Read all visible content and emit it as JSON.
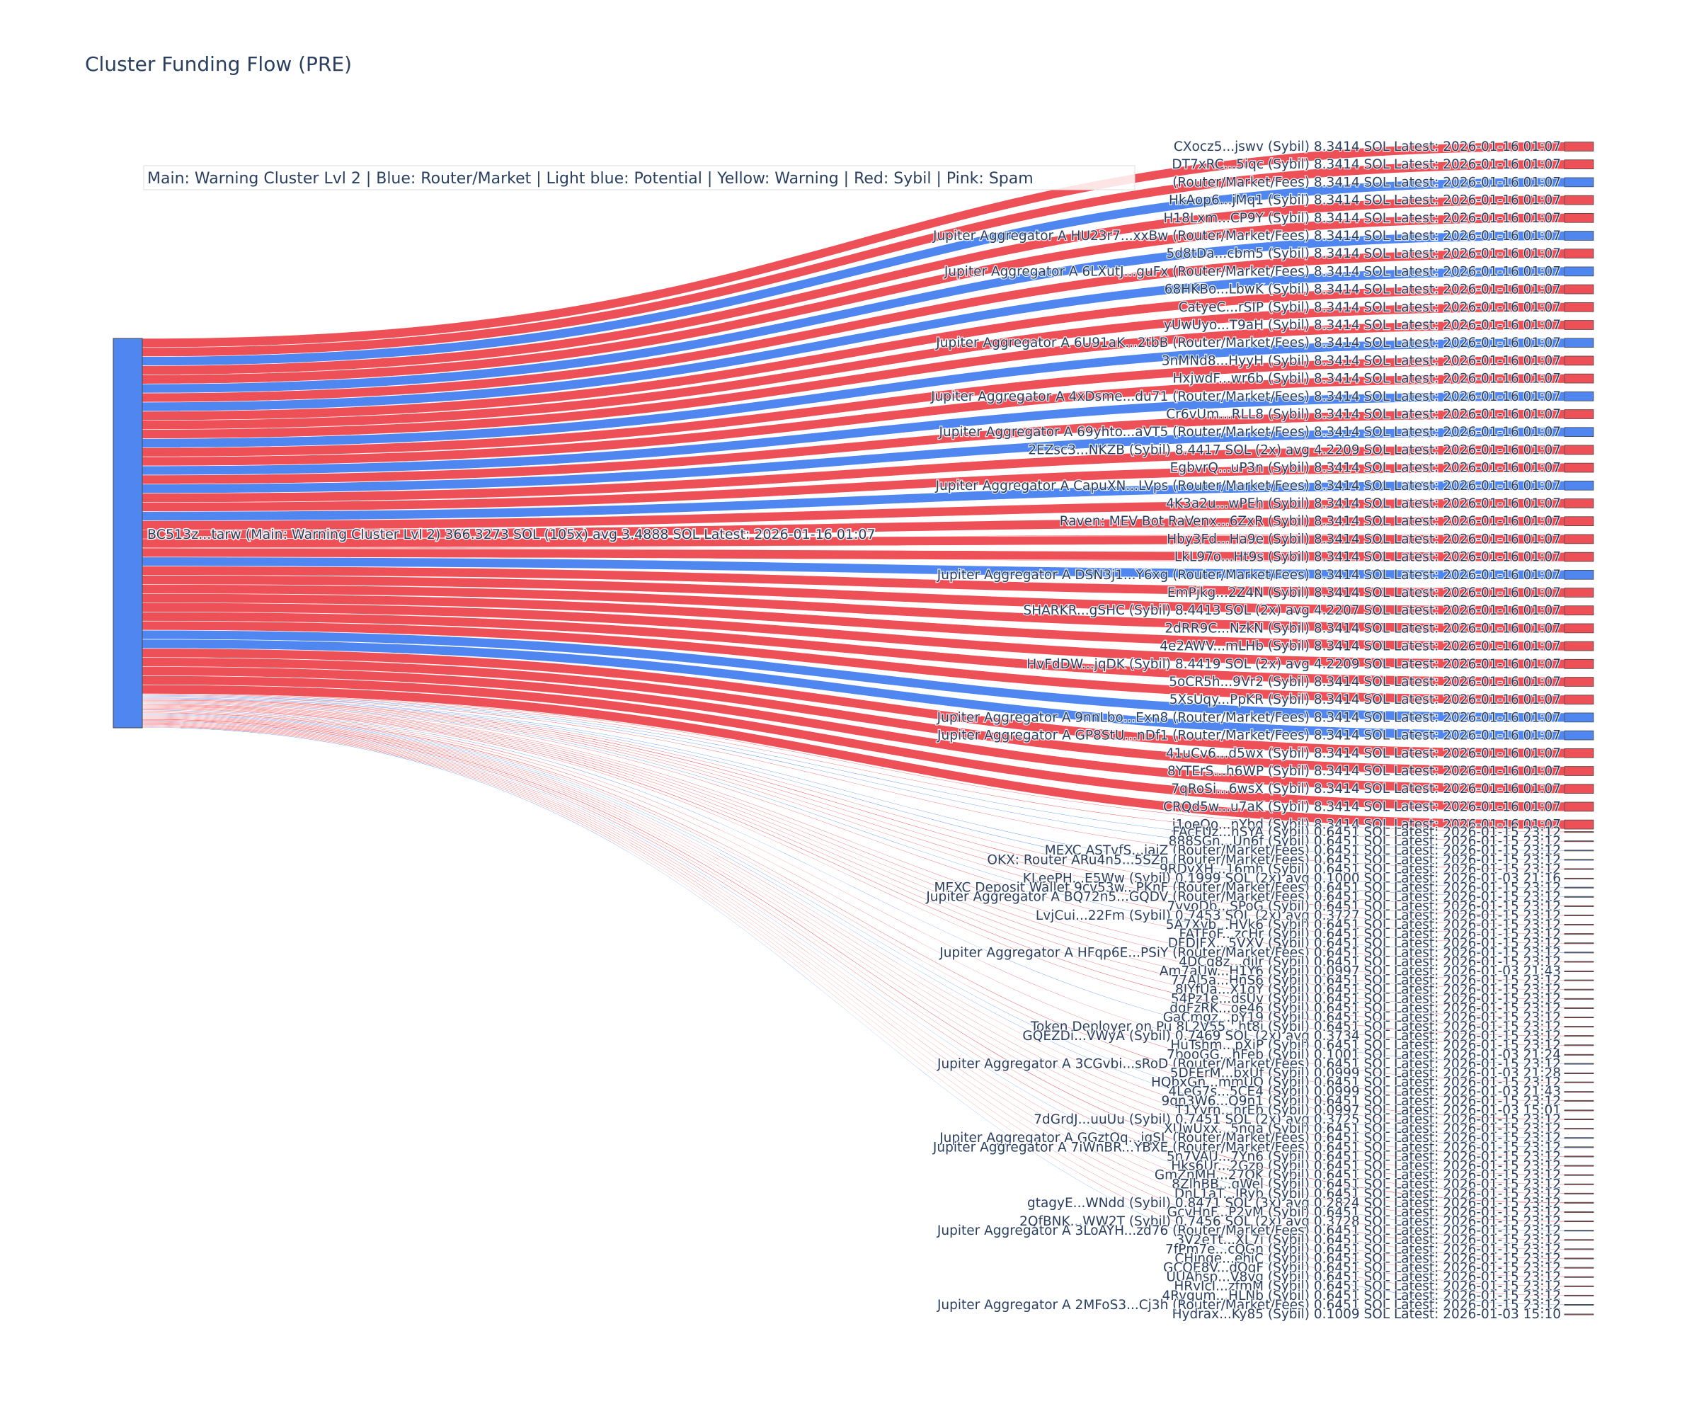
{
  "chart_data": {
    "type": "sankey",
    "title": "Cluster Funding Flow (PRE)",
    "legend_text": "Main: Warning Cluster Lvl 2  |  Blue: Router/Market | Light blue: Potential | Yellow: Warning | Red: Sybil | Pink: Spam",
    "legend_placement": "top-left",
    "colors": {
      "node_main": "#4f86f0",
      "router": "#4f86f0",
      "sybil": "#ee5058",
      "sybil_link": "#ee5058",
      "router_link": "#4f86f0"
    },
    "source": {
      "label": "BC513z...tarw (Main: Warning Cluster Lvl 2) 366.3273 SOL (105x) avg 3.4888 SOL Latest: 2026-01-16 01:07",
      "value": 366.3273
    },
    "targets": [
      {
        "label": "CXocz5...jswv (Sybil) 8.3414 SOL Latest: 2026-01-16 01:07",
        "value": 8.3414,
        "kind": "sybil"
      },
      {
        "label": "DT7xRC...5iqc (Sybil) 8.3414 SOL Latest: 2026-01-16 01:07",
        "value": 8.3414,
        "kind": "sybil"
      },
      {
        "label": "(Router/Market/Fees) 8.3414 SOL Latest: 2026-01-16 01:07",
        "value": 8.3414,
        "kind": "router"
      },
      {
        "label": "HkAop6...jMq1 (Sybil) 8.3414 SOL Latest: 2026-01-16 01:07",
        "value": 8.3414,
        "kind": "sybil"
      },
      {
        "label": "H18Lxm...CP9Y (Sybil) 8.3414 SOL Latest: 2026-01-16 01:07",
        "value": 8.3414,
        "kind": "sybil"
      },
      {
        "label": "Jupiter Aggregator A HU23r7...xxBw (Router/Market/Fees) 8.3414 SOL Latest: 2026-01-16 01:07",
        "value": 8.3414,
        "kind": "router"
      },
      {
        "label": "5d8tDa...cbm5 (Sybil) 8.3414 SOL Latest: 2026-01-16 01:07",
        "value": 8.3414,
        "kind": "sybil"
      },
      {
        "label": "Jupiter Aggregator A 6LXutJ...guFx (Router/Market/Fees) 8.3414 SOL Latest: 2026-01-16 01:07",
        "value": 8.3414,
        "kind": "router"
      },
      {
        "label": "68HKBo...LbwK (Sybil) 8.3414 SOL Latest: 2026-01-16 01:07",
        "value": 8.3414,
        "kind": "sybil"
      },
      {
        "label": "CatyeC...rSIP (Sybil) 8.3414 SOL Latest: 2026-01-16 01:07",
        "value": 8.3414,
        "kind": "sybil"
      },
      {
        "label": "yUwUyo...T9aH (Sybil) 8.3414 SOL Latest: 2026-01-16 01:07",
        "value": 8.3414,
        "kind": "sybil"
      },
      {
        "label": "Jupiter Aggregator A 6U91aK...2tbB (Router/Market/Fees) 8.3414 SOL Latest: 2026-01-16 01:07",
        "value": 8.3414,
        "kind": "router"
      },
      {
        "label": "3nMNd8...HyyH (Sybil) 8.3414 SOL Latest: 2026-01-16 01:07",
        "value": 8.3414,
        "kind": "sybil"
      },
      {
        "label": "HxjwdF...wr6b (Sybil) 8.3414 SOL Latest: 2026-01-16 01:07",
        "value": 8.3414,
        "kind": "sybil"
      },
      {
        "label": "Jupiter Aggregator A 4xDsme...du71 (Router/Market/Fees) 8.3414 SOL Latest: 2026-01-16 01:07",
        "value": 8.3414,
        "kind": "router"
      },
      {
        "label": "Cr6vUm...RLL8 (Sybil) 8.3414 SOL Latest: 2026-01-16 01:07",
        "value": 8.3414,
        "kind": "sybil"
      },
      {
        "label": "Jupiter Aggregator A 69yhto...aVT5 (Router/Market/Fees) 8.3414 SOL Latest: 2026-01-16 01:07",
        "value": 8.3414,
        "kind": "router"
      },
      {
        "label": "2EZsc3...NKZB (Sybil) 8.4417 SOL (2x) avg 4.2209 SOL Latest: 2026-01-16 01:07",
        "value": 8.4417,
        "kind": "sybil"
      },
      {
        "label": "EgbvrQ...uP3n (Sybil) 8.3414 SOL Latest: 2026-01-16 01:07",
        "value": 8.3414,
        "kind": "sybil"
      },
      {
        "label": "Jupiter Aggregator A CapuXN...LVps (Router/Market/Fees) 8.3414 SOL Latest: 2026-01-16 01:07",
        "value": 8.3414,
        "kind": "router"
      },
      {
        "label": "4K3a2u...wPEh (Sybil) 8.3414 SOL Latest: 2026-01-16 01:07",
        "value": 8.3414,
        "kind": "sybil"
      },
      {
        "label": "Raven: MEV Bot RaVenx...6ZxR (Sybil) 8.3414 SOL Latest: 2026-01-16 01:07",
        "value": 8.3414,
        "kind": "sybil"
      },
      {
        "label": "Hby3Fd...Ha9e (Sybil) 8.3414 SOL Latest: 2026-01-16 01:07",
        "value": 8.3414,
        "kind": "sybil"
      },
      {
        "label": "LkL97o...Ht9s (Sybil) 8.3414 SOL Latest: 2026-01-16 01:07",
        "value": 8.3414,
        "kind": "sybil"
      },
      {
        "label": "Jupiter Aggregator A DSN3j1...Y6xg (Router/Market/Fees) 8.3414 SOL Latest: 2026-01-16 01:07",
        "value": 8.3414,
        "kind": "router"
      },
      {
        "label": "EmPjkg...2Z4N (Sybil) 8.3414 SOL Latest: 2026-01-16 01:07",
        "value": 8.3414,
        "kind": "sybil"
      },
      {
        "label": "SHARKR...gSHC (Sybil) 8.4413 SOL (2x) avg 4.2207 SOL Latest: 2026-01-16 01:07",
        "value": 8.4413,
        "kind": "sybil"
      },
      {
        "label": "2dRR9C...NzkN (Sybil) 8.3414 SOL Latest: 2026-01-16 01:07",
        "value": 8.3414,
        "kind": "sybil"
      },
      {
        "label": "4e2AWV...mLHb (Sybil) 8.3414 SOL Latest: 2026-01-16 01:07",
        "value": 8.3414,
        "kind": "sybil"
      },
      {
        "label": "HvFdDW...jqDK (Sybil) 8.4419 SOL (2x) avg 4.2209 SOL Latest: 2026-01-16 01:07",
        "value": 8.4419,
        "kind": "sybil"
      },
      {
        "label": "5oCR5h...9Vr2 (Sybil) 8.3414 SOL Latest: 2026-01-16 01:07",
        "value": 8.3414,
        "kind": "sybil"
      },
      {
        "label": "5XsUqy...PpKR (Sybil) 8.3414 SOL Latest: 2026-01-16 01:07",
        "value": 8.3414,
        "kind": "sybil"
      },
      {
        "label": "Jupiter Aggregator A 9nnLbo...Exn8 (Router/Market/Fees) 8.3414 SOL Latest: 2026-01-16 01:07",
        "value": 8.3414,
        "kind": "router"
      },
      {
        "label": "Jupiter Aggregator A GP8StU...nDf1 (Router/Market/Fees) 8.3414 SOL Latest: 2026-01-16 01:07",
        "value": 8.3414,
        "kind": "router"
      },
      {
        "label": "41uCv6...d5wx (Sybil) 8.3414 SOL Latest: 2026-01-16 01:07",
        "value": 8.3414,
        "kind": "sybil"
      },
      {
        "label": "8YTErS...h6WP (Sybil) 8.3414 SOL Latest: 2026-01-16 01:07",
        "value": 8.3414,
        "kind": "sybil"
      },
      {
        "label": "7qRoSi...6wsX (Sybil) 8.3414 SOL Latest: 2026-01-16 01:07",
        "value": 8.3414,
        "kind": "sybil"
      },
      {
        "label": "CRQd5w...u7aK (Sybil) 8.3414 SOL Latest: 2026-01-16 01:07",
        "value": 8.3414,
        "kind": "sybil"
      },
      {
        "label": "j1oeQo...nYbd (Sybil) 8.3414 SOL Latest: 2026-01-16 01:07",
        "value": 8.3414,
        "kind": "sybil"
      },
      {
        "label": "FAcFUz...hSYA (Sybil) 0.6451 SOL Latest: 2026-01-15 23:12",
        "value": 0.6451,
        "kind": "sybil"
      },
      {
        "label": "888SGn...Un6f (Sybil) 0.6451 SOL Latest: 2026-01-15 23:12",
        "value": 0.6451,
        "kind": "sybil"
      },
      {
        "label": "MEXC ASTvfS...iaiZ (Router/Market/Fees) 0.6451 SOL Latest: 2026-01-15 23:12",
        "value": 0.6451,
        "kind": "router"
      },
      {
        "label": "OKX: Router ARu4n5...5SZn (Router/Market/Fees) 0.6451 SOL Latest: 2026-01-15 23:12",
        "value": 0.6451,
        "kind": "router"
      },
      {
        "label": "9RDyXH...16mh (Sybil) 0.6451 SOL Latest: 2026-01-15 23:12",
        "value": 0.6451,
        "kind": "sybil"
      },
      {
        "label": "KLeePH...E5Ww (Sybil) 0.1999 SOL (2x) avg 0.1000 SOL Latest: 2026-01-03 21:16",
        "value": 0.1999,
        "kind": "sybil"
      },
      {
        "label": "MEXC Deposit Wallet 9cv53w...PKnF (Router/Market/Fees) 0.6451 SOL Latest: 2026-01-15 23:12",
        "value": 0.6451,
        "kind": "router"
      },
      {
        "label": "Jupiter Aggregator A BQ72n5...GQDV (Router/Market/Fees) 0.6451 SOL Latest: 2026-01-15 23:12",
        "value": 0.6451,
        "kind": "router"
      },
      {
        "label": "7vvoDb...SPoG (Sybil) 0.6451 SOL Latest: 2026-01-15 23:12",
        "value": 0.6451,
        "kind": "sybil"
      },
      {
        "label": "LvjCui...22Fm (Sybil) 0.7453 SOL (2x) avg 0.3727 SOL Latest: 2026-01-15 23:12",
        "value": 0.7453,
        "kind": "sybil"
      },
      {
        "label": "5A7Xvb...HVk6 (Sybil) 0.6451 SOL Latest: 2026-01-15 23:12",
        "value": 0.6451,
        "kind": "sybil"
      },
      {
        "label": "FATFoF...zcHr (Sybil) 0.6451 SOL Latest: 2026-01-15 23:12",
        "value": 0.6451,
        "kind": "sybil"
      },
      {
        "label": "DFDJFX...5VXV (Sybil) 0.6451 SOL Latest: 2026-01-15 23:12",
        "value": 0.6451,
        "kind": "sybil"
      },
      {
        "label": "Jupiter Aggregator A HFqp6E...PSiY (Router/Market/Fees) 0.6451 SOL Latest: 2026-01-15 23:12",
        "value": 0.6451,
        "kind": "router"
      },
      {
        "label": "4DCq8z...djJr (Sybil) 0.6451 SOL Latest: 2026-01-15 23:12",
        "value": 0.6451,
        "kind": "sybil"
      },
      {
        "label": "Am7aUw...H1Y6 (Sybil) 0.0997 SOL Latest: 2026-01-03 21:43",
        "value": 0.0997,
        "kind": "sybil"
      },
      {
        "label": "77Al5a...HnS6 (Sybil) 0.6451 SOL Latest: 2026-01-15 23:12",
        "value": 0.6451,
        "kind": "sybil"
      },
      {
        "label": "8JYfUa...X1qY (Sybil) 0.6451 SOL Latest: 2026-01-15 23:12",
        "value": 0.6451,
        "kind": "sybil"
      },
      {
        "label": "54Pz1e...dsUv (Sybil) 0.6451 SOL Latest: 2026-01-15 23:12",
        "value": 0.6451,
        "kind": "sybil"
      },
      {
        "label": "dqFzRK...oe46 (Sybil) 0.6451 SOL Latest: 2026-01-15 23:12",
        "value": 0.6451,
        "kind": "sybil"
      },
      {
        "label": "GaCmgz...pY19 (Sybil) 0.6451 SOL Latest: 2026-01-15 23:12",
        "value": 0.6451,
        "kind": "sybil"
      },
      {
        "label": "Token Deployer on Pu 8L2V55...ht8i (Sybil) 0.6451 SOL Latest: 2026-01-15 23:12",
        "value": 0.6451,
        "kind": "sybil"
      },
      {
        "label": "GQEZDi...VWyA (Sybil) 0.7469 SOL (2x) avg 0.3734 SOL Latest: 2026-01-15 23:12",
        "value": 0.7469,
        "kind": "sybil"
      },
      {
        "label": "HuTshm...pXiP (Sybil) 0.6451 SOL Latest: 2026-01-15 23:12",
        "value": 0.6451,
        "kind": "sybil"
      },
      {
        "label": "7booGG...hFeb (Sybil) 0.1001 SOL Latest: 2026-01-03 21:24",
        "value": 0.1001,
        "kind": "sybil"
      },
      {
        "label": "Jupiter Aggregator A 3CGvbi...sRoD (Router/Market/Fees) 0.6451 SOL Latest: 2026-01-15 23:12",
        "value": 0.6451,
        "kind": "router"
      },
      {
        "label": "5DFErM...bxUf (Sybil) 0.0999 SOL Latest: 2026-01-03 21:28",
        "value": 0.0999,
        "kind": "sybil"
      },
      {
        "label": "HQbxGn...mmUQ (Sybil) 0.6451 SOL Latest: 2026-01-15 23:12",
        "value": 0.6451,
        "kind": "sybil"
      },
      {
        "label": "4LeG7s...5CE4 (Sybil) 0.0999 SOL Latest: 2026-01-03 21:43",
        "value": 0.0999,
        "kind": "sybil"
      },
      {
        "label": "9qn3W6...Q9n1 (Sybil) 0.6451 SOL Latest: 2026-01-15 23:12",
        "value": 0.6451,
        "kind": "sybil"
      },
      {
        "label": "T1Yvrn...nrEb (Sybil) 0.0997 SOL Latest: 2026-01-03 15:01",
        "value": 0.0997,
        "kind": "sybil"
      },
      {
        "label": "7dGrdJ...uuUu (Sybil) 0.7451 SOL (2x) avg 0.3725 SOL Latest: 2026-01-15 23:12",
        "value": 0.7451,
        "kind": "sybil"
      },
      {
        "label": "XUwUxx...5nga (Sybil) 0.6451 SOL Latest: 2026-01-15 23:12",
        "value": 0.6451,
        "kind": "sybil"
      },
      {
        "label": "Jupiter Aggregator A GGztOq...jqSL (Router/Market/Fees) 0.6451 SOL Latest: 2026-01-15 23:12",
        "value": 0.6451,
        "kind": "router"
      },
      {
        "label": "Jupiter Aggregator A 7iWnBR...YBXE (Router/Market/Fees) 0.6451 SOL Latest: 2026-01-15 23:12",
        "value": 0.6451,
        "kind": "router"
      },
      {
        "label": "5n7VAU...7Yn6 (Sybil) 0.6451 SOL Latest: 2026-01-15 23:12",
        "value": 0.6451,
        "kind": "sybil"
      },
      {
        "label": "Hks6Ur...2Gzp (Sybil) 0.6451 SOL Latest: 2026-01-15 23:12",
        "value": 0.6451,
        "kind": "sybil"
      },
      {
        "label": "GmZnMH...27QK (Sybil) 0.6451 SOL Latest: 2026-01-15 23:12",
        "value": 0.6451,
        "kind": "sybil"
      },
      {
        "label": "8ZlhBB...qWel (Sybil) 0.6451 SOL Latest: 2026-01-15 23:12",
        "value": 0.6451,
        "kind": "sybil"
      },
      {
        "label": "DnL1aT...JRyb (Sybil) 0.6451 SOL Latest: 2026-01-15 23:12",
        "value": 0.6451,
        "kind": "sybil"
      },
      {
        "label": "gtagyE...WNdd (Sybil) 0.8471 SOL (3x) avg 0.2824 SOL Latest: 2026-01-15 23:12",
        "value": 0.8471,
        "kind": "sybil"
      },
      {
        "label": "GcvHnF...P2vM (Sybil) 0.6451 SOL Latest: 2026-01-15 23:12",
        "value": 0.6451,
        "kind": "sybil"
      },
      {
        "label": "2QfBNK...WW2T (Sybil) 0.7456 SOL (2x) avg 0.3728 SOL Latest: 2026-01-15 23:12",
        "value": 0.7456,
        "kind": "sybil"
      },
      {
        "label": "Jupiter Aggregator A 3LoAYH...zd76 (Router/Market/Fees) 0.6451 SOL Latest: 2026-01-15 23:12",
        "value": 0.6451,
        "kind": "router"
      },
      {
        "label": "3V2eTt...XL7i (Sybil) 0.6451 SOL Latest: 2026-01-15 23:12",
        "value": 0.6451,
        "kind": "sybil"
      },
      {
        "label": "7fPm7e...cQGn (Sybil) 0.6451 SOL Latest: 2026-01-15 23:12",
        "value": 0.6451,
        "kind": "sybil"
      },
      {
        "label": "CHinge...ehiC (Sybil) 0.6451 SOL Latest: 2026-01-15 23:12",
        "value": 0.6451,
        "kind": "sybil"
      },
      {
        "label": "GCQE8V...dQqF (Sybil) 0.6451 SOL Latest: 2026-01-15 23:12",
        "value": 0.6451,
        "kind": "sybil"
      },
      {
        "label": "UUAhsp...V8vg (Sybil) 0.6451 SOL Latest: 2026-01-15 23:12",
        "value": 0.6451,
        "kind": "sybil"
      },
      {
        "label": "HRvIcI...zfmM (Sybil) 0.6451 SOL Latest: 2026-01-15 23:12",
        "value": 0.6451,
        "kind": "sybil"
      },
      {
        "label": "4Rygum...HLNb (Sybil) 0.6451 SOL Latest: 2026-01-15 23:12",
        "value": 0.6451,
        "kind": "sybil"
      },
      {
        "label": "Jupiter Aggregator A 2MFoS3...Cj3h (Router/Market/Fees) 0.6451 SOL Latest: 2026-01-15 23:12",
        "value": 0.6451,
        "kind": "router"
      },
      {
        "label": "Hydrax...Ky85 (Sybil) 0.1009 SOL Latest: 2026-01-03 15:10",
        "value": 0.1009,
        "kind": "sybil"
      }
    ]
  }
}
